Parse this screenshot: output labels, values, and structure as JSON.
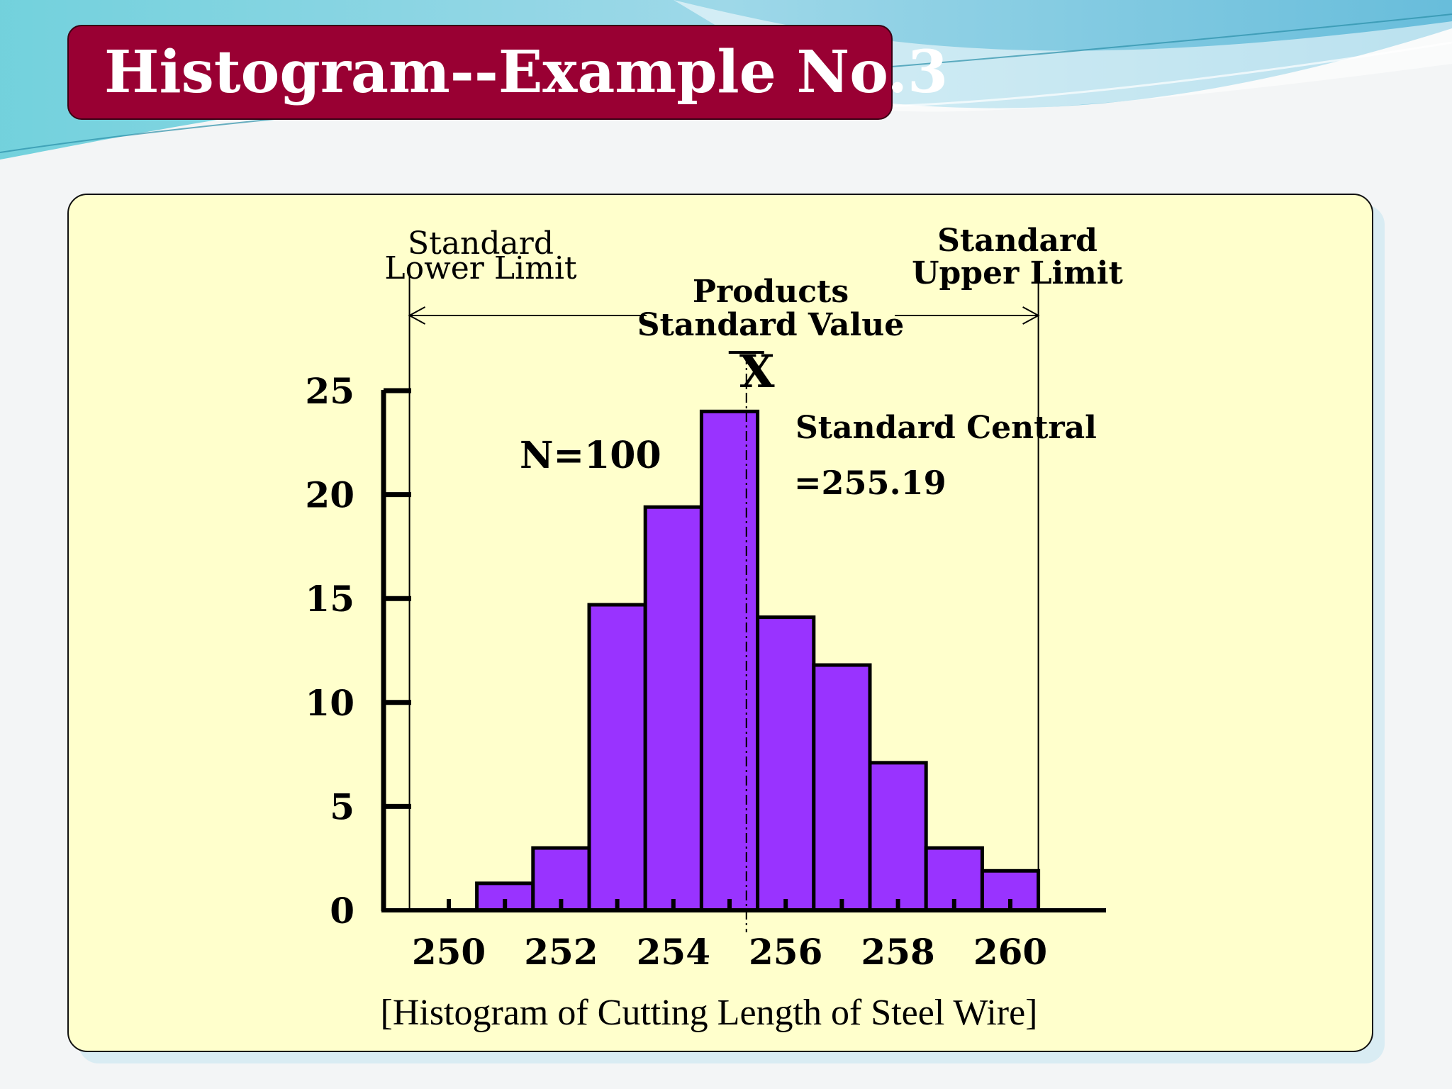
{
  "slide": {
    "title": "Histogram--Example No.3"
  },
  "colors": {
    "title_bg": "#990033",
    "panel_bg": "#ffffcc",
    "bar_fill": "#9933ff",
    "bar_stroke": "#000000"
  },
  "chart_data": {
    "type": "bar",
    "caption": "[Histogram of Cutting Length of Steel Wire]",
    "x_tick_labels": [
      "250",
      "252",
      "254",
      "256",
      "258",
      "260"
    ],
    "y_tick_labels": [
      "0",
      "5",
      "10",
      "15",
      "20",
      "25"
    ],
    "ylim": [
      0,
      25
    ],
    "bin_width": 1,
    "bins": [
      {
        "start": 250.5,
        "end": 251.5,
        "count": 1.3
      },
      {
        "start": 251.5,
        "end": 252.5,
        "count": 3
      },
      {
        "start": 252.5,
        "end": 253.5,
        "count": 14.7
      },
      {
        "start": 253.5,
        "end": 254.5,
        "count": 19.4
      },
      {
        "start": 254.5,
        "end": 255.5,
        "count": 24
      },
      {
        "start": 255.5,
        "end": 256.5,
        "count": 14.1
      },
      {
        "start": 256.5,
        "end": 257.5,
        "count": 11.8
      },
      {
        "start": 257.5,
        "end": 258.5,
        "count": 7.1
      },
      {
        "start": 258.5,
        "end": 259.5,
        "count": 3
      },
      {
        "start": 259.5,
        "end": 260.5,
        "count": 1.9
      }
    ],
    "annotations": {
      "n_label": "N=100",
      "lower_limit": {
        "label_line1": "Standard",
        "label_line2": "Lower Limit",
        "value": 249.3
      },
      "upper_limit": {
        "label_line1": "Standard",
        "label_line2": "Upper Limit",
        "value": 260.5
      },
      "standard_value": {
        "label_line1": "Products",
        "label_line2": "Standard Value"
      },
      "xbar": {
        "symbol": "X",
        "value": 255.3
      },
      "central": {
        "label_line1": "Standard Central",
        "label_line2": "=255.19"
      }
    }
  }
}
